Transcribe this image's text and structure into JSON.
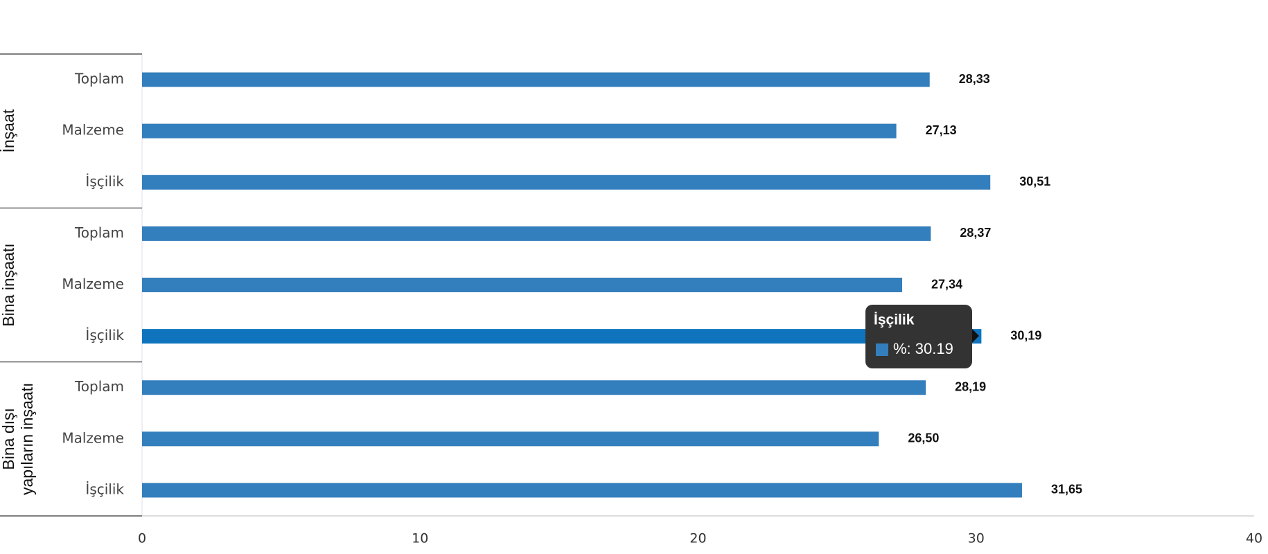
{
  "chart_data": {
    "type": "bar",
    "orientation": "horizontal",
    "groups": [
      [
        "İnşaat"
      ],
      [
        "Bina inşaatı"
      ],
      [
        "Bina dışı",
        "yapıların inşaatı"
      ]
    ],
    "categories": [
      "Toplam",
      "Malzeme",
      "İşçilik",
      "Toplam",
      "Malzeme",
      "İşçilik",
      "Toplam",
      "Malzeme",
      "İşçilik"
    ],
    "series": [
      {
        "name": "%",
        "color": "#337ebc",
        "values": [
          28.33,
          27.13,
          30.51,
          28.37,
          27.34,
          30.19,
          28.19,
          26.5,
          31.65
        ],
        "value_labels": [
          "28,33",
          "27,13",
          "30,51",
          "28,37",
          "27,34",
          "30,19",
          "28,19",
          "26,50",
          "31,65"
        ]
      }
    ],
    "highlight_color": "#0f74bd",
    "xlim": [
      0,
      40
    ],
    "xticks": [
      0,
      10,
      20,
      30,
      40
    ],
    "tooltip": {
      "title": "İşçilik",
      "text": "%: 30.19"
    }
  }
}
